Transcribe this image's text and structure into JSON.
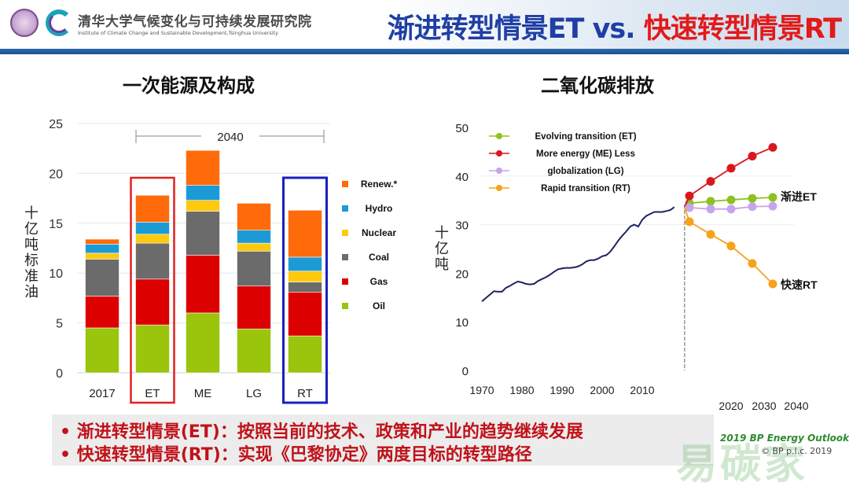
{
  "header": {
    "institute_cn": "清华大学气候变化与可持续发展研究院",
    "institute_en": "Institute of Climate Change and Sustainable Development,Tsinghua University",
    "title_et": "渐进转型情景ET",
    "title_vs": " vs. ",
    "title_rt": "快速转型情景RT"
  },
  "colors": {
    "oil": "#9bc40c",
    "gas": "#dd0000",
    "coal": "#6b6b6b",
    "nuclear": "#ffc90e",
    "hydro": "#1c9ad6",
    "renew": "#ff6a0a",
    "et": "#8dc21f",
    "me": "#d9171c",
    "lg": "#c7a4ee",
    "rt": "#f7a21b",
    "history": "#1f2360",
    "et_box": "#e02020",
    "rt_box": "#1a20c0"
  },
  "chart_data": [
    {
      "type": "bar",
      "stacked": true,
      "title": "一次能源及构成",
      "ylabel": "十亿吨标准油",
      "xlabel": "",
      "ylim": [
        0,
        25
      ],
      "yticks": [
        0,
        5,
        10,
        15,
        20,
        25
      ],
      "categories": [
        "2017",
        "ET",
        "ME",
        "LG",
        "RT"
      ],
      "group_annotation": "2040",
      "highlight": {
        "ET": "red-box",
        "RT": "blue-box"
      },
      "legend_position": "right",
      "series": [
        {
          "name": "Oil",
          "key": "oil",
          "values": [
            4.5,
            4.8,
            6.0,
            4.4,
            3.7
          ]
        },
        {
          "name": "Gas",
          "key": "gas",
          "values": [
            3.2,
            4.6,
            5.8,
            4.3,
            4.4
          ]
        },
        {
          "name": "Coal",
          "key": "coal",
          "values": [
            3.7,
            3.6,
            4.4,
            3.5,
            1.0
          ]
        },
        {
          "name": "Nuclear",
          "key": "nuclear",
          "values": [
            0.6,
            0.9,
            1.1,
            0.8,
            1.1
          ]
        },
        {
          "name": "Hydro",
          "key": "hydro",
          "values": [
            0.9,
            1.2,
            1.5,
            1.3,
            1.4
          ]
        },
        {
          "name": "Renew.*",
          "key": "renew",
          "values": [
            0.5,
            2.7,
            3.5,
            2.7,
            4.7
          ]
        }
      ]
    },
    {
      "type": "line",
      "title": "二氧化碳排放",
      "ylabel": "十亿吨",
      "xlabel": "",
      "ylim": [
        0,
        50
      ],
      "yticks": [
        0,
        10,
        20,
        30,
        40,
        50
      ],
      "xlim": [
        1970,
        2040
      ],
      "xticks_history": [
        "1970",
        "1980",
        "1990",
        "2000",
        "2010"
      ],
      "xticks_projection": [
        "2020",
        "2030",
        "2040"
      ],
      "projection_start": 2018,
      "legend_position": "top-left",
      "end_labels": {
        "et": "渐进ET",
        "rt": "快速RT"
      },
      "history": {
        "name": "History",
        "x": [
          1970,
          1971,
          1972,
          1973,
          1974,
          1975,
          1976,
          1977,
          1978,
          1979,
          1980,
          1981,
          1982,
          1983,
          1984,
          1985,
          1986,
          1987,
          1988,
          1989,
          1990,
          1991,
          1992,
          1993,
          1994,
          1995,
          1996,
          1997,
          1998,
          1999,
          2000,
          2001,
          2002,
          2003,
          2004,
          2005,
          2006,
          2007,
          2008,
          2009,
          2010,
          2011,
          2012,
          2013,
          2014,
          2015,
          2016,
          2017,
          2018
        ],
        "y": [
          14.2,
          14.9,
          15.6,
          16.3,
          16.2,
          16.2,
          17.0,
          17.4,
          17.9,
          18.3,
          18.1,
          17.8,
          17.7,
          17.8,
          18.4,
          18.8,
          19.2,
          19.7,
          20.3,
          20.8,
          21.0,
          21.1,
          21.1,
          21.2,
          21.4,
          21.8,
          22.4,
          22.7,
          22.7,
          23.0,
          23.5,
          23.7,
          24.4,
          25.5,
          26.7,
          27.7,
          28.6,
          29.6,
          30.0,
          29.6,
          31.0,
          31.8,
          32.2,
          32.6,
          32.6,
          32.6,
          32.8,
          33.0,
          33.6
        ]
      },
      "series": [
        {
          "name": "Evolving transition (ET)",
          "key": "et",
          "x": [
            2018,
            2020,
            2025,
            2030,
            2035,
            2040
          ],
          "y": [
            33.6,
            34.4,
            34.8,
            35.1,
            35.4,
            35.6
          ]
        },
        {
          "name": "More energy (ME)",
          "key": "me",
          "x": [
            2018,
            2020,
            2025,
            2030,
            2035,
            2040
          ],
          "y": [
            33.6,
            35.9,
            38.9,
            41.6,
            44.1,
            45.9
          ]
        },
        {
          "name": "Less globalization (LG)",
          "key": "lg",
          "x": [
            2018,
            2020,
            2025,
            2030,
            2035,
            2040
          ],
          "y": [
            33.6,
            33.5,
            33.2,
            33.2,
            33.7,
            33.8
          ]
        },
        {
          "name": "Rapid transition (RT)",
          "key": "rt",
          "x": [
            2018,
            2020,
            2025,
            2030,
            2035,
            2040
          ],
          "y": [
            33.6,
            30.6,
            28.0,
            25.6,
            22.0,
            17.8
          ]
        }
      ],
      "legend_lines": [
        {
          "key": "et",
          "text": "Evolving transition (ET)"
        },
        {
          "key": "me",
          "text": "More energy (ME)  Less"
        },
        {
          "key": "lg",
          "text": "globalization (LG)"
        },
        {
          "key": "rt",
          "text": "Rapid transition (RT)"
        }
      ]
    }
  ],
  "bullets": [
    "•  渐进转型情景(ET)：按照当前的技术、政策和产业的趋势继续发展",
    "•  快速转型情景(RT)：实现《巴黎协定》两度目标的转型路径"
  ],
  "source": {
    "line1": "2019 BP Energy Outlook",
    "line2": "© BP p.l.c. 2019"
  },
  "watermark": "易碳家"
}
